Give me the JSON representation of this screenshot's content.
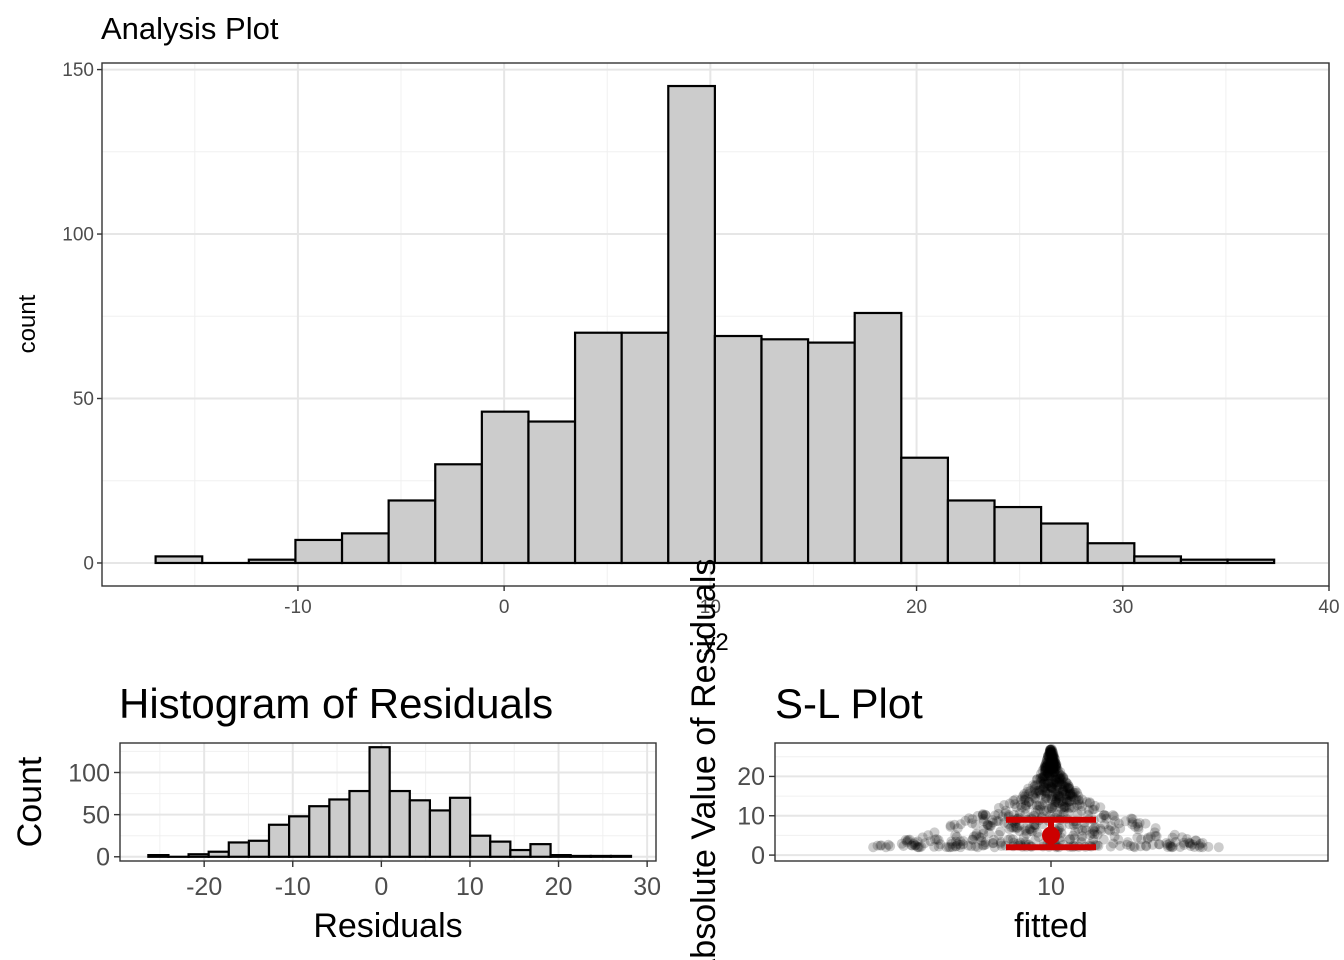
{
  "chart_data": [
    {
      "type": "bar",
      "title": "Analysis Plot",
      "xlabel": "y2",
      "ylabel": "count",
      "xlim": [
        -19.5,
        40
      ],
      "ylim": [
        -7,
        152
      ],
      "xticks": [
        -10,
        0,
        10,
        20,
        30,
        40
      ],
      "xtick_labels": [
        "-10",
        "0",
        "10",
        "20",
        "30",
        "40"
      ],
      "yticks": [
        0,
        50,
        100,
        150
      ],
      "ytick_labels": [
        "0",
        "50",
        "100",
        "150"
      ],
      "grid": true,
      "bin_start": -16.9,
      "bin_width": 2.26,
      "values": [
        2,
        0,
        1,
        7,
        9,
        19,
        30,
        46,
        43,
        70,
        70,
        145,
        69,
        68,
        67,
        76,
        32,
        19,
        17,
        12,
        6,
        2,
        1,
        1
      ],
      "bar_fill": "#cccccc",
      "bar_stroke": "#000000"
    },
    {
      "type": "bar",
      "title": "Histogram of Residuals",
      "xlabel": "Residuals",
      "ylabel": "Count",
      "xlim": [
        -29.5,
        31
      ],
      "ylim": [
        -5,
        135
      ],
      "xticks": [
        -20,
        -10,
        0,
        10,
        20,
        30
      ],
      "xtick_labels": [
        "-20",
        "-10",
        "0",
        "10",
        "20",
        "30"
      ],
      "yticks": [
        0,
        50,
        100
      ],
      "ytick_labels": [
        "0",
        "50",
        "100"
      ],
      "grid": true,
      "bin_start": -26.3,
      "bin_width": 2.27,
      "values": [
        2,
        0,
        3,
        6,
        17,
        19,
        38,
        48,
        60,
        68,
        78,
        130,
        78,
        67,
        55,
        70,
        25,
        18,
        8,
        15,
        2,
        1,
        1,
        1
      ],
      "bar_fill": "#cccccc",
      "bar_stroke": "#000000"
    },
    {
      "type": "scatter",
      "title": "S-L Plot",
      "xlabel": "fitted",
      "ylabel": "Absolute Value of Residuals",
      "ylim": [
        -1.5,
        28.5
      ],
      "yticks": [
        0,
        10,
        20
      ],
      "ytick_labels": [
        "0",
        "10",
        "20"
      ],
      "xtick_labels": [
        "10"
      ],
      "grid": true,
      "point_color": "#000000",
      "summary_color": "#cc0000",
      "summary": {
        "mean": 5,
        "lower": 2,
        "upper": 9
      },
      "distribution_profile": [
        [
          0,
          13
        ],
        [
          2,
          12
        ],
        [
          4,
          10
        ],
        [
          6,
          8
        ],
        [
          8,
          6.5
        ],
        [
          10,
          5
        ],
        [
          12,
          3.5
        ],
        [
          14,
          2.5
        ],
        [
          16,
          1.8
        ],
        [
          18,
          1.2
        ],
        [
          20,
          0.8
        ],
        [
          22,
          0.5
        ],
        [
          24,
          0.3
        ],
        [
          26,
          0.15
        ],
        [
          27,
          0.05
        ]
      ]
    }
  ]
}
